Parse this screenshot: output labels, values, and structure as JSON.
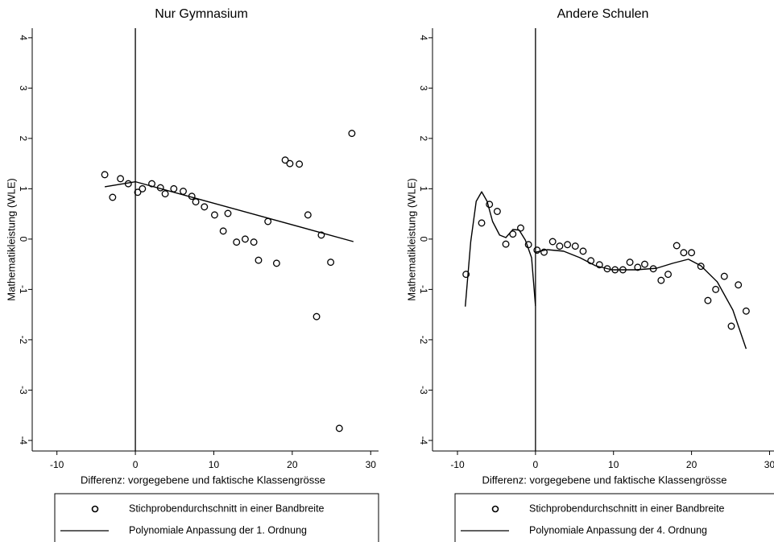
{
  "chart_data": [
    {
      "type": "scatter",
      "title": "Nur Gymnasium",
      "xlabel": "Differenz: vorgegebene und faktische Klassengrösse",
      "ylabel": "Mathematikleistung (WLE)",
      "xlim": [
        -13.15,
        31.0
      ],
      "ylim": [
        -4.21,
        4.19
      ],
      "xticks": [
        -10,
        0,
        10,
        20,
        30
      ],
      "yticks": [
        -4,
        -3,
        -2,
        -1,
        0,
        1,
        2,
        3,
        4
      ],
      "vline": 0,
      "series": [
        {
          "name": "Stichprobendurchschnitt in einer Bandbreite",
          "kind": "markers",
          "color": "#000000",
          "x": [
            -3.9,
            -2.9,
            -1.9,
            -0.9,
            0.3,
            0.9,
            2.1,
            3.2,
            3.8,
            4.9,
            6.1,
            7.2,
            7.7,
            8.8,
            10.1,
            11.2,
            11.8,
            12.9,
            14.0,
            15.1,
            15.7,
            16.9,
            18.0,
            19.1,
            19.7,
            20.9,
            22.0,
            23.1,
            23.7,
            24.9,
            26.0,
            27.6
          ],
          "values": [
            1.28,
            0.83,
            1.2,
            1.1,
            0.93,
            1.0,
            1.1,
            1.02,
            0.9,
            1.0,
            0.95,
            0.85,
            0.74,
            0.64,
            0.48,
            0.16,
            0.51,
            -0.06,
            0,
            -0.06,
            -0.42,
            0.35,
            -0.48,
            1.57,
            1.5,
            1.49,
            0.48,
            -1.54,
            0.08,
            -0.46,
            -3.76,
            2.1
          ]
        },
        {
          "name": "Polynomiale Anpassung der 1. Ordnung",
          "kind": "line",
          "color": "#000000",
          "x": [
            -3.9,
            0,
            27.8
          ],
          "values": [
            1.04,
            1.14,
            -0.05
          ]
        }
      ]
    },
    {
      "type": "scatter",
      "title": "Andere Schulen",
      "xlabel": "Differenz: vorgegebene und faktische Klassengrösse",
      "ylabel": "Mathematikleistung (WLE)",
      "xlim": [
        -13.2,
        31.5
      ],
      "ylim": [
        -4.21,
        4.19
      ],
      "xticks": [
        -10,
        0,
        10,
        20,
        30
      ],
      "yticks": [
        -4,
        -3,
        -2,
        -1,
        0,
        1,
        2,
        3,
        4
      ],
      "vline": 0,
      "series": [
        {
          "name": "Stichprobendurchschnitt in einer Bandbreite",
          "kind": "markers",
          "color": "#000000",
          "x": [
            -8.9,
            -6.9,
            -5.9,
            -4.9,
            -3.8,
            -2.9,
            -1.9,
            -0.9,
            0.2,
            1.1,
            2.2,
            3.1,
            4.1,
            5.1,
            6.1,
            7.1,
            8.2,
            9.2,
            10.2,
            11.2,
            12.1,
            13.1,
            14.0,
            15.1,
            16.1,
            17.0,
            18.1,
            19.0,
            20.0,
            21.2,
            22.1,
            23.1,
            24.2,
            25.1,
            26.0,
            27.0
          ],
          "values": [
            -0.7,
            0.32,
            0.69,
            0.55,
            -0.1,
            0.1,
            0.22,
            -0.11,
            -0.22,
            -0.26,
            -0.05,
            -0.14,
            -0.11,
            -0.14,
            -0.24,
            -0.43,
            -0.51,
            -0.59,
            -0.61,
            -0.61,
            -0.46,
            -0.56,
            -0.5,
            -0.59,
            -0.82,
            -0.7,
            -0.13,
            -0.27,
            -0.27,
            -0.54,
            -1.22,
            -1.0,
            -0.74,
            -1.73,
            -0.91,
            -1.43
          ]
        },
        {
          "name": "Polynomiale Anpassung der 4. Ordnung",
          "kind": "line",
          "color": "#000000",
          "x": [
            -9,
            -8.3,
            -7.6,
            -6.9,
            -6.2,
            -5.5,
            -4.6,
            -3.8,
            -2.9,
            -2.1,
            -1.3,
            -0.5,
            0,
            null,
            0,
            1.5,
            3.6,
            5.7,
            7.7,
            9.8,
            12.9,
            15.5,
            17.6,
            19.6,
            21.2,
            23.3,
            25.3,
            27
          ],
          "values": [
            -1.34,
            -0.05,
            0.75,
            0.94,
            0.75,
            0.35,
            0.08,
            0.03,
            0.19,
            0.18,
            -0.02,
            -0.37,
            -1.33,
            null,
            -0.26,
            -0.21,
            -0.24,
            -0.37,
            -0.53,
            -0.61,
            -0.61,
            -0.58,
            -0.48,
            -0.4,
            -0.53,
            -0.85,
            -1.41,
            -2.18
          ]
        }
      ]
    }
  ]
}
